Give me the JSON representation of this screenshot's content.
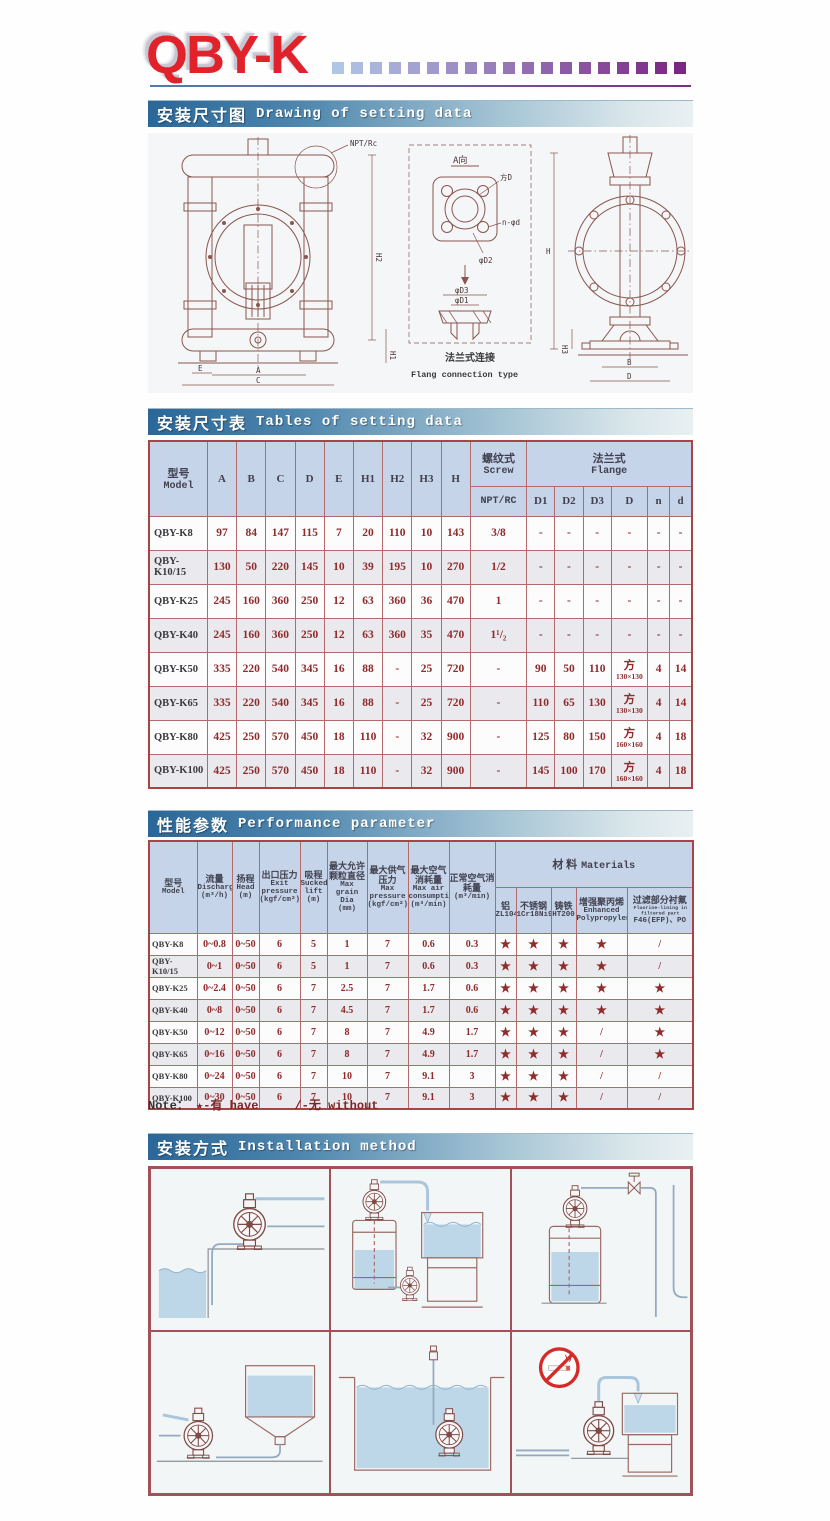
{
  "header": {
    "logo": "QBY-K",
    "squares_count": 19,
    "squares_from": "#b0c6e6",
    "squares_to": "#7b2584"
  },
  "sections": [
    {
      "zh": "安装尺寸图",
      "en": "Drawing of setting data"
    },
    {
      "zh": "安装尺寸表",
      "en": "Tables of setting data"
    },
    {
      "zh": "性能参数",
      "en": "Performance parameter"
    },
    {
      "zh": "安装方式",
      "en": "Installation method"
    }
  ],
  "drawing": {
    "front": {
      "npt": "NPT/Rc",
      "h2": "H2",
      "h1": "H1",
      "e": "E",
      "a": "A",
      "c": "C"
    },
    "flange": {
      "a_dir": "A向",
      "fang_d": "方D",
      "n_d": "n-φd",
      "d2": "φD2",
      "d3": "φD3",
      "d1": "φD1",
      "caption_zh": "法兰式连接",
      "caption_en": "Flang connection type"
    },
    "side": {
      "h": "H",
      "h3": "H3",
      "b": "B",
      "d": "D"
    }
  },
  "dimension_table": {
    "model_zh": "型号",
    "model_en": "Model",
    "dim_cols": [
      "A",
      "B",
      "C",
      "D",
      "E",
      "H1",
      "H2",
      "H3",
      "H"
    ],
    "screw_zh": "螺纹式",
    "screw_en": "Screw",
    "screw_sub": "NPT/RC",
    "flange_zh": "法兰式",
    "flange_en": "Flange",
    "flange_cols": [
      "D1",
      "D2",
      "D3",
      "D",
      "n",
      "d"
    ],
    "rows": [
      [
        "QBY-K8",
        "97",
        "84",
        "147",
        "115",
        "7",
        "20",
        "110",
        "10",
        "143",
        "3/8",
        "-",
        "-",
        "-",
        "-",
        "-",
        "-"
      ],
      [
        "QBY-K10/15",
        "130",
        "50",
        "220",
        "145",
        "10",
        "39",
        "195",
        "10",
        "270",
        "1/2",
        "-",
        "-",
        "-",
        "-",
        "-",
        "-"
      ],
      [
        "QBY-K25",
        "245",
        "160",
        "360",
        "250",
        "12",
        "63",
        "360",
        "36",
        "470",
        "1",
        "-",
        "-",
        "-",
        "-",
        "-",
        "-"
      ],
      [
        "QBY-K40",
        "245",
        "160",
        "360",
        "250",
        "12",
        "63",
        "360",
        "35",
        "470",
        "1¹/₂",
        "-",
        "-",
        "-",
        "-",
        "-",
        "-"
      ],
      [
        "QBY-K50",
        "335",
        "220",
        "540",
        "345",
        "16",
        "88",
        "-",
        "25",
        "720",
        "-",
        "90",
        "50",
        "110",
        "方|130×130",
        "4",
        "14"
      ],
      [
        "QBY-K65",
        "335",
        "220",
        "540",
        "345",
        "16",
        "88",
        "-",
        "25",
        "720",
        "-",
        "110",
        "65",
        "130",
        "方|130×130",
        "4",
        "14"
      ],
      [
        "QBY-K80",
        "425",
        "250",
        "570",
        "450",
        "18",
        "110",
        "-",
        "32",
        "900",
        "-",
        "125",
        "80",
        "150",
        "方|160×160",
        "4",
        "18"
      ],
      [
        "QBY-K100",
        "425",
        "250",
        "570",
        "450",
        "18",
        "110",
        "-",
        "32",
        "900",
        "-",
        "145",
        "100",
        "170",
        "方|160×160",
        "4",
        "18"
      ]
    ]
  },
  "performance_table": {
    "headers": [
      {
        "zh": "型号",
        "en": "Model",
        "unit": ""
      },
      {
        "zh": "流量",
        "en": "Discharge",
        "unit": "(m³/h)"
      },
      {
        "zh": "扬程",
        "en": "Head",
        "unit": "(m)"
      },
      {
        "zh": "出口压力",
        "en": "Exit pressure",
        "unit": "(kgf/cm²)"
      },
      {
        "zh": "吸程",
        "en": "Sucked lift",
        "unit": "(m)"
      },
      {
        "zh": "最大允许颗粒直径",
        "en": "Max grain Dia",
        "unit": "(mm)"
      },
      {
        "zh": "最大供气压力",
        "en": "Max pressure",
        "unit": "(kgf/cm²)"
      },
      {
        "zh": "最大空气消耗量",
        "en": "Max air consumption",
        "unit": "(m³/min)"
      },
      {
        "zh": "正常空气消耗量",
        "en": "",
        "unit": "(m³/min)"
      }
    ],
    "materials_zh": "材    料",
    "materials_en": "Materials",
    "material_cols": [
      {
        "zh": "铝",
        "en": "ZL104",
        "extra": ""
      },
      {
        "zh": "不锈钢",
        "en": "1Cr18Ni9Ti",
        "extra": ""
      },
      {
        "zh": "铸铁",
        "en": "HT200",
        "extra": ""
      },
      {
        "zh": "增强聚丙烯",
        "en": "Enhanced Polypropylene",
        "extra": ""
      },
      {
        "zh": "过滤部分衬氟",
        "en": "Fluorine-lining in filtered part",
        "extra": "F46(EFP)、PO"
      }
    ],
    "rows": [
      [
        "QBY-K8",
        "0~0.8",
        "0~50",
        "6",
        "5",
        "1",
        "7",
        "0.6",
        "0.3",
        "★",
        "★",
        "★",
        "★",
        "/"
      ],
      [
        "QBY-K10/15",
        "0~1",
        "0~50",
        "6",
        "5",
        "1",
        "7",
        "0.6",
        "0.3",
        "★",
        "★",
        "★",
        "★",
        "/"
      ],
      [
        "QBY-K25",
        "0~2.4",
        "0~50",
        "6",
        "7",
        "2.5",
        "7",
        "1.7",
        "0.6",
        "★",
        "★",
        "★",
        "★",
        "★"
      ],
      [
        "QBY-K40",
        "0~8",
        "0~50",
        "6",
        "7",
        "4.5",
        "7",
        "1.7",
        "0.6",
        "★",
        "★",
        "★",
        "★",
        "★"
      ],
      [
        "QBY-K50",
        "0~12",
        "0~50",
        "6",
        "7",
        "8",
        "7",
        "4.9",
        "1.7",
        "★",
        "★",
        "★",
        "/",
        "★"
      ],
      [
        "QBY-K65",
        "0~16",
        "0~50",
        "6",
        "7",
        "8",
        "7",
        "4.9",
        "1.7",
        "★",
        "★",
        "★",
        "/",
        "★"
      ],
      [
        "QBY-K80",
        "0~24",
        "0~50",
        "6",
        "7",
        "10",
        "7",
        "9.1",
        "3",
        "★",
        "★",
        "★",
        "/",
        "/"
      ],
      [
        "QBY-K100",
        "0~30",
        "0~50",
        "6",
        "7",
        "10",
        "7",
        "9.1",
        "3",
        "★",
        "★",
        "★",
        "/",
        "/"
      ]
    ]
  },
  "note": {
    "prefix": "Note：",
    "star": "★-有 have",
    "slash": "/-无 without"
  }
}
